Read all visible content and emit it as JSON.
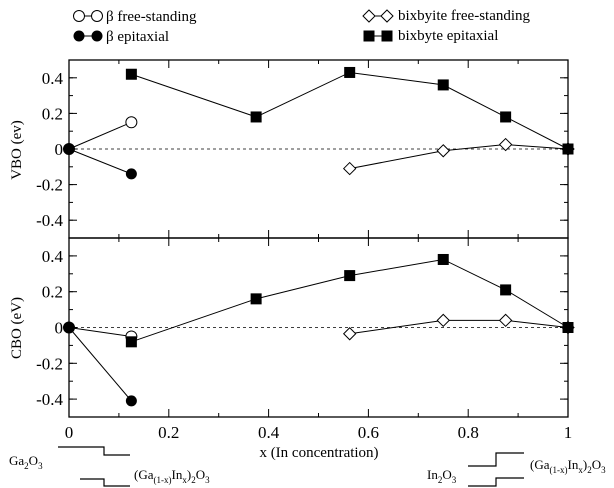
{
  "chart_data": [
    {
      "type": "line",
      "ylabel": "VBO (ev)",
      "ylim": [
        -0.5,
        0.5
      ],
      "yticks": [
        -0.4,
        -0.2,
        0,
        0.2,
        0.4
      ],
      "ytick_labels": [
        "-0.4",
        "-0.2",
        "0",
        "0.2",
        "0.4"
      ],
      "xlim": [
        0,
        1
      ],
      "series": [
        {
          "name": "β free-standing",
          "marker": "open-circle",
          "x": [
            0,
            0.125
          ],
          "y": [
            0,
            0.15
          ]
        },
        {
          "name": "β epitaxial",
          "marker": "filled-circle",
          "x": [
            0,
            0.125
          ],
          "y": [
            0,
            -0.14
          ]
        },
        {
          "name": "bixbyite free-standing",
          "marker": "open-diamond",
          "x": [
            0.5625,
            0.75,
            0.875,
            1.0
          ],
          "y": [
            -0.11,
            -0.01,
            0.025,
            0
          ]
        },
        {
          "name": "bixbyte epitaxial",
          "marker": "filled-square",
          "x": [
            0.125,
            0.375,
            0.5625,
            0.75,
            0.875,
            1.0
          ],
          "y": [
            0.42,
            0.18,
            0.43,
            0.36,
            0.18,
            0
          ]
        }
      ]
    },
    {
      "type": "line",
      "ylabel": "CBO (eV)",
      "xlabel": "x (In concentration)",
      "ylim": [
        -0.5,
        0.5
      ],
      "yticks": [
        -0.4,
        -0.2,
        0,
        0.2,
        0.4
      ],
      "ytick_labels": [
        "-0.4",
        "-0.2",
        "0",
        "0.2",
        "0.4"
      ],
      "xlim": [
        0,
        1
      ],
      "xticks": [
        0,
        0.2,
        0.4,
        0.6,
        0.8,
        1.0
      ],
      "xtick_labels": [
        "0",
        "0.2",
        "0.4",
        "0.6",
        "0.8",
        "1"
      ],
      "series": [
        {
          "name": "β free-standing",
          "marker": "open-circle",
          "x": [
            0,
            0.125
          ],
          "y": [
            0,
            -0.05
          ]
        },
        {
          "name": "β epitaxial",
          "marker": "filled-circle",
          "x": [
            0,
            0.125
          ],
          "y": [
            0,
            -0.41
          ]
        },
        {
          "name": "bixbyite free-standing",
          "marker": "open-diamond",
          "x": [
            0.5625,
            0.75,
            0.875,
            1.0
          ],
          "y": [
            -0.035,
            0.04,
            0.04,
            0
          ]
        },
        {
          "name": "bixbyte epitaxial",
          "marker": "filled-square",
          "x": [
            0.125,
            0.375,
            0.5625,
            0.75,
            0.875,
            1.0
          ],
          "y": [
            -0.08,
            0.16,
            0.29,
            0.38,
            0.21,
            0
          ]
        }
      ]
    }
  ],
  "legend": {
    "items": [
      {
        "label": "β free-standing",
        "marker": "open-circle"
      },
      {
        "label": "β epitaxial",
        "marker": "filled-circle"
      },
      {
        "label": "bixbyite free-standing",
        "marker": "open-diamond"
      },
      {
        "label": "bixbyte epitaxial",
        "marker": "filled-square"
      }
    ]
  },
  "band_diagrams": {
    "left": {
      "top_label": "Ga",
      "top_sub": "2",
      "top_label2": "O",
      "top_sub2": "3",
      "bottom_label": "(Ga",
      "bottom_sub": "(1-x)",
      "bottom_label2": "In",
      "bottom_sub2": "x",
      "bottom_label3": ")",
      "bottom_sub3": "2",
      "bottom_label4": "O",
      "bottom_sub4": "3"
    },
    "right": {
      "top_label": "(Ga",
      "top_sub": "(1-x)",
      "top_label2": "In",
      "top_sub2": "x",
      "top_label3": ")",
      "top_sub3": "2",
      "top_label4": "O",
      "top_sub4": "3",
      "bottom_label": "In",
      "bottom_sub": "2",
      "bottom_label2": "O",
      "bottom_sub2": "3"
    }
  }
}
